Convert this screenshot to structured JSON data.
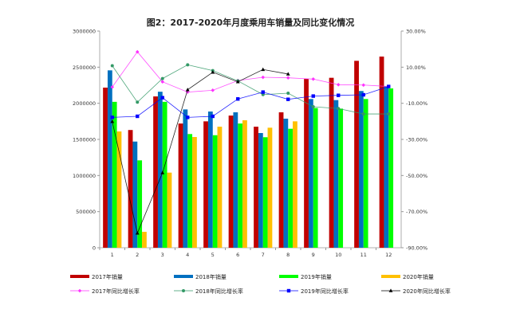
{
  "chart_data": {
    "type": "bar+line",
    "title": "图2：2017-2020年月度乘用车销量及同比变化情况",
    "categories": [
      "1",
      "2",
      "3",
      "4",
      "5",
      "6",
      "7",
      "8",
      "9",
      "10",
      "11",
      "12"
    ],
    "y_left": {
      "range": [
        0,
        3000000
      ],
      "ticks": [
        "0",
        "500000",
        "1000000",
        "1500000",
        "2000000",
        "2500000",
        "3000000"
      ]
    },
    "y_right": {
      "range": [
        -90,
        30
      ],
      "ticks": [
        "-90.00%",
        "-70.00%",
        "-50.00%",
        "-30.00%",
        "-10.00%",
        "10.00%",
        "30.00%"
      ]
    },
    "bar_series": [
      {
        "name": "2017年销量",
        "color": "#c00000",
        "values": [
          2217000,
          1630000,
          2095000,
          1720000,
          1750000,
          1830000,
          1676000,
          1875000,
          2338000,
          2353000,
          2588000,
          2647000
        ]
      },
      {
        "name": "2018年销量",
        "color": "#0070c0",
        "values": [
          2456000,
          1470000,
          2160000,
          1915000,
          1886000,
          1875000,
          1588000,
          1787000,
          2059000,
          2044000,
          2170000,
          2236000
        ]
      },
      {
        "name": "2019年销量",
        "color": "#00ff00",
        "values": [
          2020000,
          1210000,
          2020000,
          1574000,
          1558000,
          1720000,
          1530000,
          1647000,
          1934000,
          1926000,
          2059000,
          2206000
        ]
      },
      {
        "name": "2020年销量",
        "color": "#ffc000",
        "values": [
          1610000,
          220000,
          1040000,
          1533000,
          1676000,
          1765000,
          1662000,
          1750000,
          null,
          null,
          null,
          null
        ]
      }
    ],
    "line_series": [
      {
        "name": "2017年同比增长率",
        "color": "#ff33ff",
        "marker": "diamond",
        "values": [
          -1.0,
          18.5,
          1.9,
          -3.8,
          -2.8,
          2.6,
          4.4,
          4.1,
          3.4,
          0.3,
          0.1,
          -0.7
        ]
      },
      {
        "name": "2018年同比增长率",
        "color": "#339966",
        "marker": "circle",
        "values": [
          10.8,
          -9.4,
          3.7,
          11.3,
          8.1,
          2.4,
          -5.2,
          -4.4,
          -11.9,
          -12.9,
          -15.9,
          -15.9
        ]
      },
      {
        "name": "2019年同比增长率",
        "color": "#0000ff",
        "marker": "square",
        "values": [
          -17.8,
          -17.2,
          -6.9,
          -17.8,
          -17.2,
          -7.6,
          -3.8,
          -7.8,
          -6.0,
          -5.6,
          -5.3,
          -0.7
        ]
      },
      {
        "name": "2020年同比增长率",
        "color": "#000000",
        "marker": "triangle",
        "values": [
          -20.1,
          -81.9,
          -48.5,
          -2.5,
          7.2,
          1.9,
          8.7,
          6.2,
          null,
          null,
          null,
          null
        ]
      }
    ],
    "legend": "bottom"
  }
}
